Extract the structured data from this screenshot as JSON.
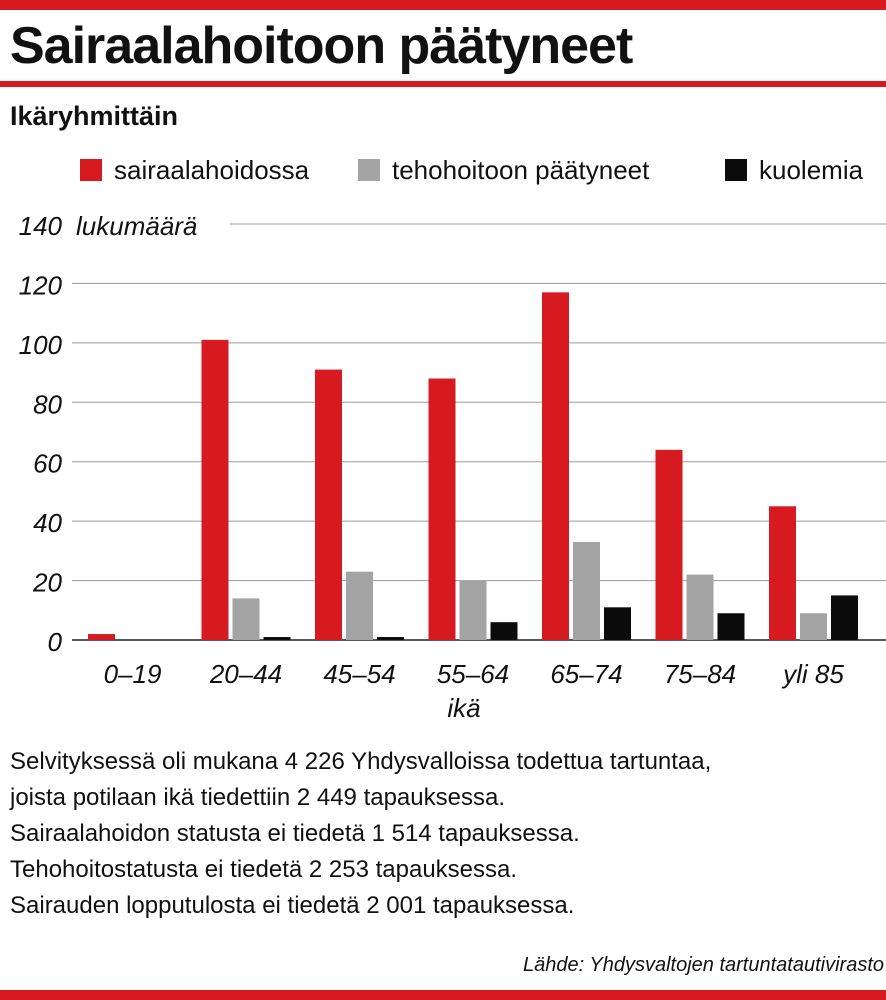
{
  "header": {
    "title": "Sairaalahoitoon päätyneet",
    "subtitle": "Ikäryhmittäin"
  },
  "colors": {
    "accent": "#d71920",
    "hospital": "#d71920",
    "icu": "#a3a3a3",
    "deaths": "#0b0b0b"
  },
  "chart_data": {
    "type": "bar",
    "title": "Sairaalahoitoon päätyneet",
    "subtitle": "Ikäryhmittäin",
    "xlabel": "ikä",
    "ylabel": "lukumäärä",
    "ylim": [
      0,
      140
    ],
    "yticks": [
      0,
      20,
      40,
      60,
      80,
      100,
      120,
      140
    ],
    "grid": true,
    "legend_position": "top",
    "categories": [
      "0–19",
      "20–44",
      "45–54",
      "55–64",
      "65–74",
      "75–84",
      "yli 85"
    ],
    "series": [
      {
        "name": "sairaalahoidossa",
        "color": "#d71920",
        "values": [
          2,
          101,
          91,
          88,
          117,
          64,
          45
        ]
      },
      {
        "name": "tehohoitoon päätyneet",
        "color": "#a3a3a3",
        "values": [
          0,
          14,
          23,
          20,
          33,
          22,
          9
        ]
      },
      {
        "name": "kuolemia",
        "color": "#0b0b0b",
        "values": [
          0,
          1,
          1,
          6,
          11,
          9,
          15
        ]
      }
    ]
  },
  "notes": [
    "Selvityksessä oli mukana 4 226 Yhdysvalloissa todettua tartuntaa,",
    "joista potilaan ikä tiedettiin 2 449 tapauksessa.",
    "Sairaalahoidon statusta ei tiedetä 1 514 tapauksessa.",
    "Tehohoitostatusta ei tiedetä 2 253 tapauksessa.",
    "Sairauden lopputulosta ei tiedetä 2 001 tapauksessa."
  ],
  "source": "Lähde: Yhdysvaltojen tartuntatautivirasto"
}
